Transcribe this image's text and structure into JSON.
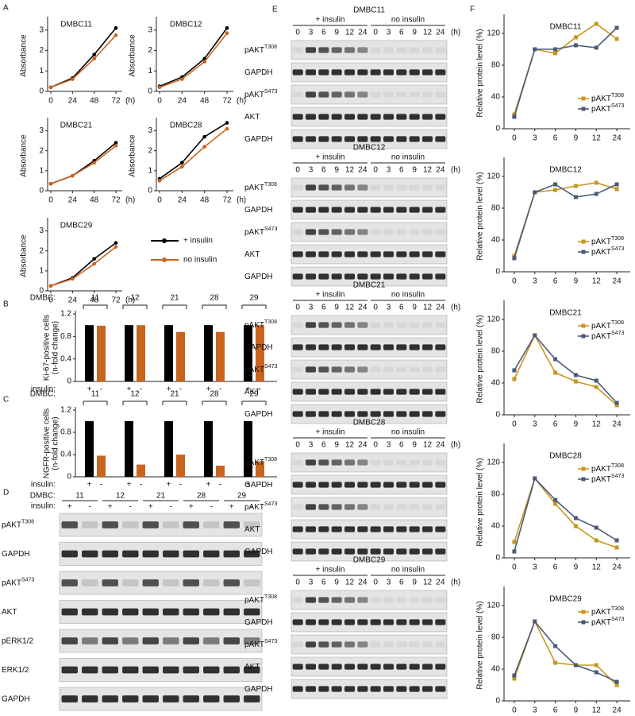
{
  "panel_labels": [
    "A",
    "B",
    "C",
    "D",
    "E",
    "F"
  ],
  "chart_data": [
    {
      "type": "line",
      "title": "DMBC11",
      "x": [
        0,
        24,
        48,
        72
      ],
      "xlim": [
        0,
        72
      ],
      "xticks": [
        0,
        24,
        48,
        72
      ],
      "x_unit": "(h)",
      "ylim": [
        0,
        3.5
      ],
      "yticks": [
        0,
        1,
        2,
        3
      ],
      "ylabel": [
        "Absorbance"
      ],
      "series": [
        {
          "color": "#000000",
          "values": [
            0.2,
            0.65,
            1.8,
            3.1
          ]
        },
        {
          "color": "#c8641e",
          "values": [
            0.2,
            0.6,
            1.6,
            2.75
          ]
        }
      ]
    },
    {
      "type": "line",
      "title": "DMBC12",
      "x": [
        0,
        24,
        48,
        72
      ],
      "xlim": [
        0,
        72
      ],
      "xticks": [
        0,
        24,
        48,
        72
      ],
      "x_unit": "(h)",
      "ylim": [
        0,
        3.5
      ],
      "yticks": [
        0,
        1,
        2,
        3
      ],
      "ylabel": [
        "Absorbance"
      ],
      "series": [
        {
          "color": "#000000",
          "values": [
            0.25,
            0.7,
            1.6,
            3.1
          ]
        },
        {
          "color": "#c8641e",
          "values": [
            0.2,
            0.6,
            1.45,
            2.85
          ]
        }
      ]
    },
    {
      "type": "line",
      "title": "DMBC21",
      "x": [
        0,
        24,
        48,
        72
      ],
      "xlim": [
        0,
        72
      ],
      "xticks": [
        0,
        24,
        48,
        72
      ],
      "x_unit": "(h)",
      "ylim": [
        0,
        3.5
      ],
      "yticks": [
        0,
        1,
        2,
        3
      ],
      "ylabel": [
        "Absorbance"
      ],
      "series": [
        {
          "color": "#000000",
          "values": [
            0.35,
            0.75,
            1.5,
            2.4
          ]
        },
        {
          "color": "#c8641e",
          "values": [
            0.35,
            0.75,
            1.4,
            2.25
          ]
        }
      ]
    },
    {
      "type": "line",
      "title": "DMBC28",
      "x": [
        0,
        24,
        48,
        72
      ],
      "xlim": [
        0,
        72
      ],
      "xticks": [
        0,
        24,
        48,
        72
      ],
      "x_unit": "(h)",
      "ylim": [
        0,
        3.5
      ],
      "yticks": [
        0,
        1,
        2,
        3
      ],
      "ylabel": [
        "Absorbance"
      ],
      "series": [
        {
          "color": "#000000",
          "values": [
            0.6,
            1.4,
            2.7,
            3.4
          ]
        },
        {
          "color": "#c8641e",
          "values": [
            0.5,
            1.2,
            2.2,
            3.1
          ]
        }
      ]
    },
    {
      "type": "line",
      "title": "DMBC29",
      "x": [
        0,
        24,
        48,
        72
      ],
      "xlim": [
        0,
        72
      ],
      "xticks": [
        0,
        24,
        48,
        72
      ],
      "x_unit": "(h)",
      "ylim": [
        0,
        3.5
      ],
      "yticks": [
        0,
        1,
        2,
        3
      ],
      "ylabel": [
        "Absorbance"
      ],
      "series": [
        {
          "name": "+ insulin",
          "color": "#000000",
          "values": [
            0.25,
            0.65,
            1.6,
            2.4
          ]
        },
        {
          "name": "no insulin",
          "color": "#c8641e",
          "values": [
            0.25,
            0.6,
            1.35,
            2.2
          ]
        }
      ]
    },
    {
      "type": "bar",
      "category_label": "DMBC:",
      "categories": [
        "11",
        "12",
        "21",
        "28",
        "29"
      ],
      "row_label": "insulin:",
      "ylim": [
        0,
        1.2
      ],
      "yticks": [
        0,
        0.4,
        0.8,
        1.2
      ],
      "ylabel": [
        "Ki-67-positive cells",
        "(n-fold change)"
      ],
      "series": [
        {
          "name": "+",
          "color": "#000000",
          "values": [
            1,
            1,
            1,
            1,
            1
          ]
        },
        {
          "name": "-",
          "color": "#c8641e",
          "values": [
            0.99,
            1.0,
            0.88,
            0.88,
            1.0
          ]
        }
      ]
    },
    {
      "type": "bar",
      "category_label": "DMBC:",
      "categories": [
        "11",
        "12",
        "21",
        "28",
        "29"
      ],
      "row_label": "insulin:",
      "ylim": [
        0,
        1.2
      ],
      "yticks": [
        0,
        0.4,
        0.8,
        1.2
      ],
      "ylabel": [
        "NGFR-positive cells",
        "(n-fold change)"
      ],
      "series": [
        {
          "name": "+",
          "color": "#000000",
          "values": [
            1,
            1,
            1,
            1,
            1
          ]
        },
        {
          "name": "-",
          "color": "#c8641e",
          "values": [
            0.38,
            0.22,
            0.4,
            0.2,
            0.28
          ]
        }
      ]
    },
    {
      "type": "line",
      "title": "DMBC11",
      "categories": [
        "0",
        "3",
        "6",
        "9",
        "12",
        "24"
      ],
      "ylim": [
        0,
        140
      ],
      "yticks": [
        0,
        40,
        80,
        120
      ],
      "ylabel": [
        "Relative protein level (%)"
      ],
      "legend": "lower right",
      "series": [
        {
          "name": "pAKT",
          "sup": "T308",
          "color": "#c8961e",
          "values": [
            18,
            100,
            95,
            115,
            132,
            113
          ]
        },
        {
          "name": "pAKT",
          "sup": "S473",
          "color": "#4b5a78",
          "values": [
            15,
            100,
            100,
            105,
            102,
            127
          ]
        }
      ]
    },
    {
      "type": "line",
      "title": "DMBC12",
      "categories": [
        "0",
        "3",
        "6",
        "9",
        "12",
        "24"
      ],
      "ylim": [
        0,
        140
      ],
      "yticks": [
        0,
        40,
        80,
        120
      ],
      "ylabel": [
        "Relative protein level (%)"
      ],
      "legend": "lower right",
      "series": [
        {
          "name": "pAKT",
          "sup": "T308",
          "color": "#c8961e",
          "values": [
            20,
            100,
            103,
            108,
            112,
            104
          ]
        },
        {
          "name": "pAKT",
          "sup": "S473",
          "color": "#4b5a78",
          "values": [
            17,
            100,
            110,
            94,
            98,
            110
          ]
        }
      ]
    },
    {
      "type": "line",
      "title": "DMBC21",
      "categories": [
        "0",
        "3",
        "6",
        "9",
        "12",
        "24"
      ],
      "ylim": [
        0,
        140
      ],
      "yticks": [
        0,
        40,
        80,
        120
      ],
      "ylabel": [
        "Relative protein level (%)"
      ],
      "legend": "upper right",
      "series": [
        {
          "name": "pAKT",
          "sup": "T308",
          "color": "#c8961e",
          "values": [
            45,
            100,
            53,
            42,
            35,
            12
          ]
        },
        {
          "name": "pAKT",
          "sup": "S473",
          "color": "#4b5a78",
          "values": [
            56,
            100,
            70,
            50,
            43,
            15
          ]
        }
      ]
    },
    {
      "type": "line",
      "title": "DMBC28",
      "categories": [
        "0",
        "3",
        "6",
        "9",
        "12",
        "24"
      ],
      "ylim": [
        0,
        140
      ],
      "yticks": [
        0,
        40,
        80,
        120
      ],
      "ylabel": [
        "Relative protein level (%)"
      ],
      "legend": "upper right",
      "series": [
        {
          "name": "pAKT",
          "sup": "T308",
          "color": "#c8961e",
          "values": [
            20,
            100,
            68,
            40,
            22,
            13
          ]
        },
        {
          "name": "pAKT",
          "sup": "S473",
          "color": "#4b5a78",
          "values": [
            8,
            100,
            73,
            50,
            38,
            22
          ]
        }
      ]
    },
    {
      "type": "line",
      "title": "DMBC29",
      "categories": [
        "0",
        "3",
        "6",
        "9",
        "12",
        "24"
      ],
      "ylim": [
        0,
        140
      ],
      "yticks": [
        0,
        40,
        80,
        120
      ],
      "ylabel": [
        "Relative protein level (%)"
      ],
      "legend": "upper right",
      "series": [
        {
          "name": "pAKT",
          "sup": "T308",
          "color": "#c8961e",
          "values": [
            28,
            100,
            48,
            45,
            45,
            20
          ]
        },
        {
          "name": "pAKT",
          "sup": "S473",
          "color": "#4b5a78",
          "values": [
            32,
            100,
            69,
            45,
            36,
            24
          ]
        }
      ]
    }
  ],
  "blots": [
    {
      "header_label": "DMBC:",
      "groups": [
        "11",
        "12",
        "21",
        "28",
        "29"
      ],
      "insulin_label": "insulin:",
      "lane_labels": [
        "+",
        "-"
      ],
      "rows": [
        {
          "text": "pAKT",
          "sup": "T308"
        },
        {
          "text": "GAPDH"
        },
        {
          "text": "pAKT",
          "sup": "S473"
        },
        {
          "text": "AKT"
        },
        {
          "text": "pERK1/2"
        },
        {
          "text": "ERK1/2"
        },
        {
          "text": "GAPDH"
        }
      ]
    },
    {
      "title": "DMBC11",
      "conditions": [
        "+ insulin",
        "no insulin"
      ],
      "times": [
        "0",
        "3",
        "6",
        "9",
        "12",
        "24"
      ],
      "unit": "(h)",
      "rows": [
        {
          "text": "pAKT",
          "sup": "T308"
        },
        {
          "text": "GAPDH"
        },
        {
          "text": "pAKT",
          "sup": "S473"
        },
        {
          "text": "AKT"
        },
        {
          "text": "GAPDH"
        }
      ]
    },
    {
      "title": "DMBC12",
      "conditions": [
        "+ insulin",
        "no insulin"
      ],
      "times": [
        "0",
        "3",
        "6",
        "9",
        "12",
        "24"
      ],
      "unit": "(h)",
      "rows": [
        {
          "text": "pAKT",
          "sup": "T308"
        },
        {
          "text": "GAPDH"
        },
        {
          "text": "pAKT",
          "sup": "S473"
        },
        {
          "text": "AKT"
        },
        {
          "text": "GAPDH"
        }
      ]
    },
    {
      "title": "DMBC21",
      "conditions": [
        "+ insulin",
        "no insulin"
      ],
      "times": [
        "0",
        "3",
        "6",
        "9",
        "12",
        "24"
      ],
      "unit": "(h)",
      "rows": [
        {
          "text": "pAKT",
          "sup": "T308"
        },
        {
          "text": "GAPDH"
        },
        {
          "text": "pAKT",
          "sup": "S473"
        },
        {
          "text": "AKT"
        },
        {
          "text": "GAPDH"
        }
      ]
    },
    {
      "title": "DMBC28",
      "conditions": [
        "+ insulin",
        "no insulin"
      ],
      "times": [
        "0",
        "3",
        "6",
        "9",
        "12",
        "24"
      ],
      "unit": "(h)",
      "rows": [
        {
          "text": "pAKT",
          "sup": "T308"
        },
        {
          "text": "GAPDH"
        },
        {
          "text": "pAKT",
          "sup": "S473"
        },
        {
          "text": "AKT"
        },
        {
          "text": "GAPDH"
        }
      ]
    },
    {
      "title": "DMBC29",
      "conditions": [
        "+ insulin",
        "no insulin"
      ],
      "times": [
        "0",
        "3",
        "6",
        "9",
        "12",
        "24"
      ],
      "unit": "(h)",
      "rows": [
        {
          "text": "pAKT",
          "sup": "T308"
        },
        {
          "text": "GAPDH"
        },
        {
          "text": "pAKT",
          "sup": "S473"
        },
        {
          "text": "AKT"
        },
        {
          "text": "GAPDH"
        }
      ]
    }
  ]
}
